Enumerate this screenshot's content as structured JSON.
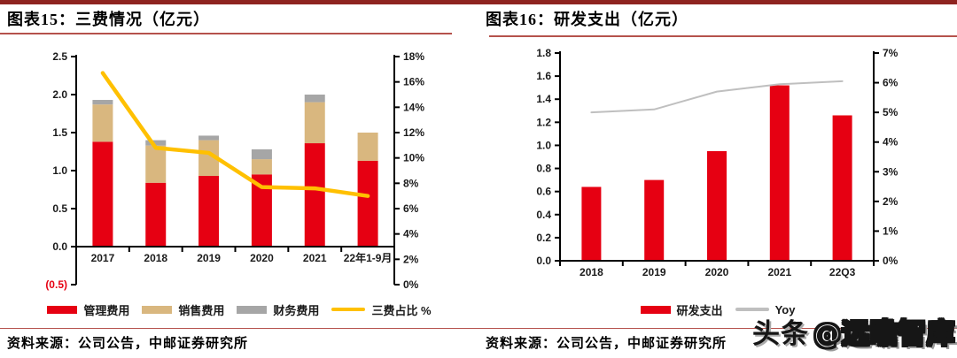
{
  "page": {
    "background": "#ffffff",
    "accent_colors": {
      "top_bar": "#8e2420",
      "thin_rule": "#b5524c"
    },
    "watermark": {
      "prefix": "头条",
      "handle": "@远瞻智库"
    }
  },
  "panels": [
    {
      "title": "图表15：三费情况（亿元）",
      "source": "资料来源：公司公告，中邮证券研究所"
    },
    {
      "title": "图表16：研发支出（亿元）",
      "source": "资料来源：公司公告，中邮证券研究所"
    }
  ],
  "chart_data": [
    {
      "type": "bar",
      "subtype": "stacked-bar-with-line",
      "title": "三费情况（亿元）",
      "categories": [
        "2017",
        "2018",
        "2019",
        "2020",
        "2021",
        "22年1-9月"
      ],
      "series": [
        {
          "name": "管理费用",
          "type": "bar",
          "color": "#e60012",
          "values": [
            1.38,
            0.84,
            0.93,
            0.95,
            1.36,
            1.13
          ]
        },
        {
          "name": "销售费用",
          "type": "bar",
          "color": "#d9b77f",
          "values": [
            0.49,
            0.49,
            0.47,
            0.2,
            0.54,
            0.37
          ]
        },
        {
          "name": "财务费用",
          "type": "bar",
          "color": "#a6a6a6",
          "values": [
            0.06,
            0.07,
            0.06,
            0.13,
            0.1,
            0.0
          ]
        },
        {
          "name": "三费占比 %",
          "type": "line",
          "axis": "right",
          "color": "#ffc000",
          "values": [
            16.7,
            10.8,
            10.4,
            7.7,
            7.6,
            7.0
          ]
        }
      ],
      "left_axis": {
        "min": -0.5,
        "max": 2.5,
        "tick_labels": [
          "2.5",
          "2.0",
          "1.5",
          "1.0",
          "0.5",
          "0.0",
          "(0.5)"
        ],
        "negative_label_color": "#e60012"
      },
      "right_axis": {
        "min": 0,
        "max": 18,
        "tick_labels": [
          "18%",
          "16%",
          "14%",
          "12%",
          "10%",
          "8%",
          "6%",
          "4%",
          "2%",
          "0%"
        ]
      },
      "grid": false,
      "legend_position": "bottom"
    },
    {
      "type": "bar",
      "subtype": "bar-with-line",
      "title": "研发支出（亿元）",
      "categories": [
        "2018",
        "2019",
        "2020",
        "2021",
        "22Q3"
      ],
      "series": [
        {
          "name": "研发支出",
          "type": "bar",
          "color": "#e60012",
          "values": [
            0.64,
            0.7,
            0.95,
            1.52,
            1.26
          ]
        },
        {
          "name": "Yoy",
          "type": "line",
          "axis": "right",
          "color": "#bfbfbf",
          "values": [
            5.0,
            5.1,
            5.7,
            5.95,
            6.05
          ]
        }
      ],
      "left_axis": {
        "min": 0,
        "max": 1.8,
        "tick_labels": [
          "1.8",
          "1.6",
          "1.4",
          "1.2",
          "1.0",
          "0.8",
          "0.6",
          "0.4",
          "0.2",
          "0.0"
        ]
      },
      "right_axis": {
        "min": 0,
        "max": 7,
        "tick_labels": [
          "7%",
          "6%",
          "5%",
          "4%",
          "3%",
          "2%",
          "1%",
          "0%"
        ]
      },
      "grid": false,
      "legend_position": "bottom"
    }
  ]
}
